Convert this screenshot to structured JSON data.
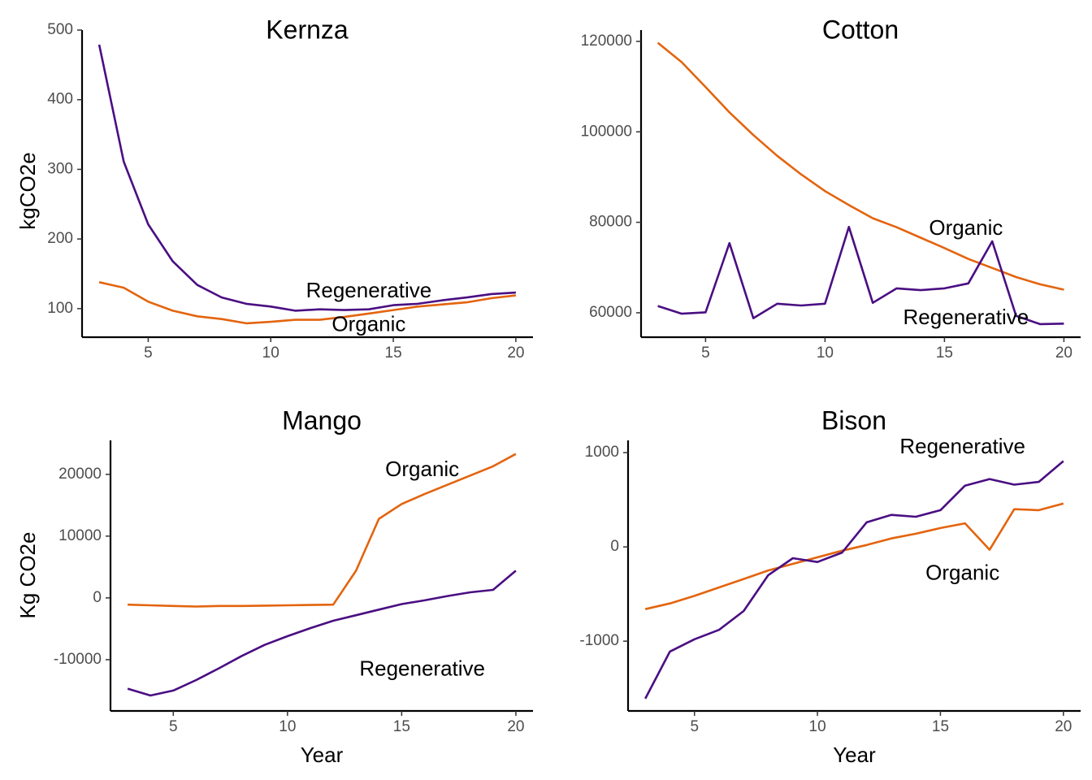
{
  "chart_data": [
    {
      "type": "line",
      "title": "Kernza",
      "xlabel": "",
      "ylabel": "kgCO2e",
      "xlim": [
        2.3,
        20.7
      ],
      "ylim": [
        59,
        500
      ],
      "xticks": [
        5,
        10,
        15,
        20
      ],
      "xtick_labels": [
        "5",
        "10",
        "15",
        "20"
      ],
      "yticks": [
        100,
        200,
        300,
        400,
        500
      ],
      "ytick_labels": [
        "100",
        "200",
        "300",
        "400",
        "500"
      ],
      "grid": false,
      "legend": "none",
      "x": [
        3,
        4,
        5,
        6,
        7,
        8,
        9,
        10,
        11,
        12,
        13,
        14,
        15,
        16,
        17,
        18,
        19,
        20
      ],
      "series": [
        {
          "name": "Regenerative",
          "color": "#4a0e82",
          "values": [
            479,
            311,
            221,
            168,
            134,
            116,
            107,
            103,
            97,
            99,
            98,
            99,
            105,
            107,
            112,
            116,
            121,
            123
          ]
        },
        {
          "name": "Organic",
          "color": "#e3640e",
          "values": [
            138,
            130,
            110,
            97,
            89,
            85,
            79,
            81,
            84,
            84,
            88,
            93,
            98,
            103,
            106,
            109,
            115,
            119
          ]
        }
      ],
      "annotations": [
        {
          "text": "Regenerative",
          "x": 14.0,
          "y": 124
        },
        {
          "text": "Organic",
          "x": 14.0,
          "y": 76
        }
      ]
    },
    {
      "type": "line",
      "title": "Cotton",
      "xlabel": "",
      "ylabel": "",
      "xlim": [
        2.3,
        20.7
      ],
      "ylim": [
        54600,
        122500
      ],
      "xticks": [
        5,
        10,
        15,
        20
      ],
      "xtick_labels": [
        "5",
        "10",
        "15",
        "20"
      ],
      "yticks": [
        60000,
        80000,
        100000,
        120000
      ],
      "ytick_labels": [
        "60000",
        "80000",
        "100000",
        "120000"
      ],
      "grid": false,
      "legend": "none",
      "x": [
        3,
        4,
        5,
        6,
        7,
        8,
        9,
        10,
        11,
        12,
        13,
        14,
        15,
        16,
        17,
        18,
        19,
        20
      ],
      "series": [
        {
          "name": "Organic",
          "color": "#e3640e",
          "values": [
            119700,
            115400,
            109900,
            104300,
            99300,
            94700,
            90600,
            86900,
            83800,
            80900,
            78900,
            76600,
            74300,
            71900,
            69900,
            67900,
            66300,
            65100
          ]
        },
        {
          "name": "Regenerative",
          "color": "#4a0e82",
          "values": [
            61500,
            59800,
            60100,
            75400,
            58800,
            62000,
            61600,
            62000,
            79000,
            62200,
            65400,
            65000,
            65400,
            66500,
            75800,
            59300,
            57500,
            57600
          ]
        }
      ],
      "annotations": [
        {
          "text": "Organic",
          "x": 15.9,
          "y": 78500
        },
        {
          "text": "Regenerative",
          "x": 15.9,
          "y": 58700
        }
      ]
    },
    {
      "type": "line",
      "title": "Mango",
      "xlabel": "Year",
      "ylabel": "Kg CO2e",
      "xlim": [
        2.25,
        20.75
      ],
      "ylim": [
        -18300,
        25500
      ],
      "xticks": [
        5,
        10,
        15,
        20
      ],
      "xtick_labels": [
        "5",
        "10",
        "15",
        "20"
      ],
      "yticks": [
        -10000,
        0,
        10000,
        20000
      ],
      "ytick_labels": [
        "-10000",
        "0",
        "10000",
        "20000"
      ],
      "grid": false,
      "legend": "none",
      "x": [
        3,
        4,
        5,
        6,
        7,
        8,
        9,
        10,
        11,
        12,
        13,
        14,
        15,
        16,
        17,
        18,
        19,
        20
      ],
      "series": [
        {
          "name": "Organic",
          "color": "#e3640e",
          "values": [
            -1100,
            -1200,
            -1300,
            -1400,
            -1300,
            -1300,
            -1250,
            -1200,
            -1150,
            -1100,
            4400,
            12800,
            15200,
            16800,
            18300,
            19800,
            21300,
            23300
          ]
        },
        {
          "name": "Regenerative",
          "color": "#4a0e82",
          "values": [
            -14700,
            -15800,
            -15000,
            -13300,
            -11400,
            -9400,
            -7600,
            -6200,
            -4900,
            -3700,
            -2800,
            -1900,
            -1000,
            -400,
            300,
            900,
            1300,
            4400
          ]
        }
      ],
      "annotations": [
        {
          "text": "Organic",
          "x": 15.9,
          "y": 20600
        },
        {
          "text": "Regenerative",
          "x": 15.9,
          "y": -11700
        }
      ]
    },
    {
      "type": "line",
      "title": "Bison",
      "xlabel": "Year",
      "ylabel": "",
      "xlim": [
        2.3,
        20.7
      ],
      "ylim": [
        -1740,
        1130
      ],
      "xticks": [
        5,
        10,
        15,
        20
      ],
      "xtick_labels": [
        "5",
        "10",
        "15",
        "20"
      ],
      "yticks": [
        -1000,
        0,
        1000
      ],
      "ytick_labels": [
        "-1000",
        "0",
        "1000"
      ],
      "grid": false,
      "legend": "none",
      "x": [
        3,
        4,
        5,
        6,
        7,
        8,
        9,
        10,
        11,
        12,
        13,
        14,
        15,
        16,
        17,
        18,
        19,
        20
      ],
      "series": [
        {
          "name": "Organic",
          "color": "#e3640e",
          "values": [
            -660,
            -600,
            -520,
            -430,
            -340,
            -250,
            -180,
            -110,
            -40,
            20,
            90,
            140,
            200,
            250,
            -30,
            400,
            390,
            460
          ]
        },
        {
          "name": "Regenerative",
          "color": "#4a0e82",
          "values": [
            -1610,
            -1110,
            -980,
            -880,
            -680,
            -300,
            -120,
            -160,
            -60,
            260,
            340,
            320,
            390,
            650,
            720,
            660,
            690,
            910
          ]
        }
      ],
      "annotations": [
        {
          "text": "Regenerative",
          "x": 15.9,
          "y": 1050
        },
        {
          "text": "Organic",
          "x": 15.9,
          "y": -290
        }
      ]
    }
  ]
}
